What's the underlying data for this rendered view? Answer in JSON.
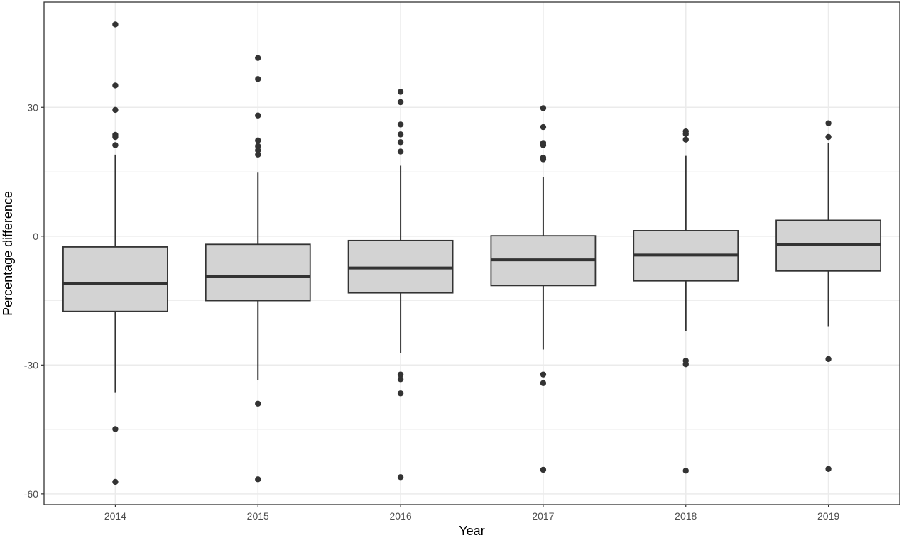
{
  "chart_data": {
    "type": "box",
    "xlabel": "Year",
    "ylabel": "Percentage difference",
    "ylim": [
      -62.5,
      54.5
    ],
    "y_ticks": [
      -60,
      -30,
      0,
      30
    ],
    "grid": true,
    "legend": "none",
    "categories": [
      "2014",
      "2015",
      "2016",
      "2017",
      "2018",
      "2019"
    ],
    "boxes": [
      {
        "category": "2014",
        "whisker_low": -36.5,
        "q1": -17.5,
        "median": -11.0,
        "q3": -2.5,
        "whisker_high": 19.0,
        "outliers": [
          49.3,
          35.1,
          29.4,
          23.6,
          23.1,
          21.2,
          -44.9,
          -57.2
        ]
      },
      {
        "category": "2015",
        "whisker_low": -33.5,
        "q1": -15.0,
        "median": -9.3,
        "q3": -1.9,
        "whisker_high": 14.8,
        "outliers": [
          41.5,
          36.6,
          28.1,
          22.3,
          21.0,
          20.0,
          19.0,
          -39.0,
          -56.6
        ]
      },
      {
        "category": "2016",
        "whisker_low": -27.3,
        "q1": -13.2,
        "median": -7.4,
        "q3": -1.0,
        "whisker_high": 16.4,
        "outliers": [
          33.6,
          31.2,
          26.0,
          23.7,
          21.9,
          19.7,
          -32.2,
          -33.3,
          -36.6,
          -56.1
        ]
      },
      {
        "category": "2017",
        "whisker_low": -26.4,
        "q1": -11.5,
        "median": -5.5,
        "q3": 0.1,
        "whisker_high": 13.7,
        "outliers": [
          29.8,
          25.4,
          21.7,
          21.2,
          18.3,
          17.9,
          -32.2,
          -34.2,
          -54.4
        ]
      },
      {
        "category": "2018",
        "whisker_low": -22.1,
        "q1": -10.4,
        "median": -4.4,
        "q3": 1.3,
        "whisker_high": 18.7,
        "outliers": [
          24.4,
          23.8,
          22.5,
          -29.0,
          -29.8,
          -54.6
        ]
      },
      {
        "category": "2019",
        "whisker_low": -21.1,
        "q1": -8.1,
        "median": -2.0,
        "q3": 3.7,
        "whisker_high": 21.7,
        "outliers": [
          26.3,
          23.1,
          -28.6,
          -54.2
        ]
      }
    ],
    "colors": {
      "box_fill": "#d3d3d3",
      "box_stroke": "#333333",
      "point": "#333333",
      "grid": "#ebebeb",
      "panel_border": "#333333",
      "tick_text": "#4d4d4d"
    }
  }
}
